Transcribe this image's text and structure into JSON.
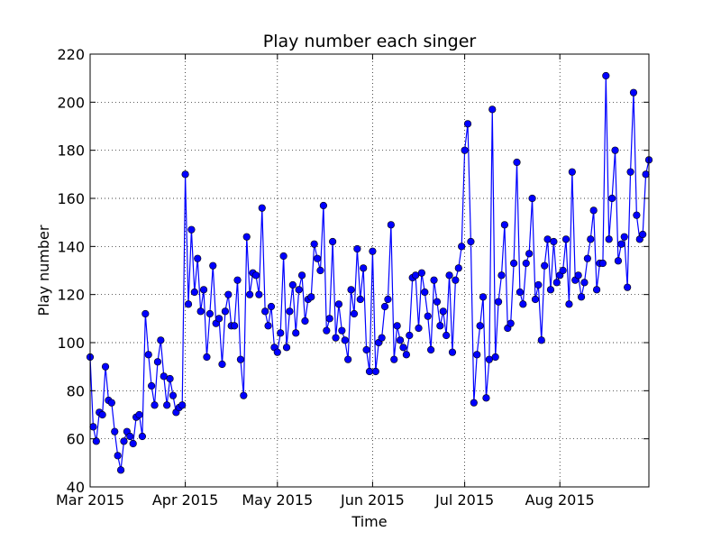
{
  "chart_data": {
    "type": "line",
    "title": "Play number each singer",
    "xlabel": "Time",
    "ylabel": "Play number",
    "x_start": "2015-03-01",
    "x_end": "2015-08-30",
    "xlim": [
      "2015-03-01",
      "2015-08-30"
    ],
    "ylim": [
      40,
      220
    ],
    "yticks": [
      40,
      60,
      80,
      100,
      120,
      140,
      160,
      180,
      200,
      220
    ],
    "xticks": [
      {
        "date": "2015-03-01",
        "label": "Mar 2015"
      },
      {
        "date": "2015-04-01",
        "label": "Apr 2015"
      },
      {
        "date": "2015-05-01",
        "label": "May 2015"
      },
      {
        "date": "2015-06-01",
        "label": "Jun 2015"
      },
      {
        "date": "2015-07-01",
        "label": "Jul 2015"
      },
      {
        "date": "2015-08-01",
        "label": "Aug 2015"
      }
    ],
    "grid": true,
    "series": [
      {
        "color": "#0000ff",
        "marker": "circle",
        "values": [
          94,
          65,
          59,
          71,
          70,
          90,
          76,
          75,
          63,
          53,
          47,
          59,
          63,
          61,
          58,
          69,
          70,
          61,
          112,
          95,
          82,
          74,
          92,
          101,
          86,
          74,
          85,
          78,
          71,
          73,
          74,
          170,
          116,
          147,
          121,
          135,
          113,
          122,
          94,
          112,
          132,
          108,
          110,
          91,
          113,
          120,
          107,
          107,
          126,
          93,
          78,
          144,
          120,
          129,
          128,
          120,
          156,
          113,
          107,
          115,
          98,
          96,
          104,
          136,
          98,
          113,
          124,
          104,
          122,
          128,
          109,
          118,
          119,
          141,
          135,
          130,
          157,
          105,
          110,
          142,
          102,
          116,
          105,
          101,
          93,
          122,
          112,
          139,
          118,
          131,
          97,
          88,
          138,
          88,
          100,
          102,
          115,
          118,
          149,
          93,
          107,
          101,
          98,
          95,
          103,
          127,
          128,
          106,
          129,
          121,
          111,
          97,
          126,
          117,
          107,
          113,
          103,
          128,
          96,
          126,
          131,
          140,
          180,
          191,
          142,
          75,
          95,
          107,
          119,
          77,
          93,
          197,
          94,
          117,
          128,
          149,
          106,
          108,
          133,
          175,
          121,
          116,
          133,
          137,
          160,
          118,
          124,
          101,
          132,
          143,
          122,
          142,
          125,
          128,
          130,
          143,
          116,
          171,
          126,
          128,
          119,
          125,
          135,
          143,
          155,
          122,
          133,
          133,
          211,
          143,
          160,
          180,
          134,
          141,
          144,
          123,
          171,
          204,
          153,
          143,
          145,
          170,
          176
        ]
      }
    ]
  }
}
